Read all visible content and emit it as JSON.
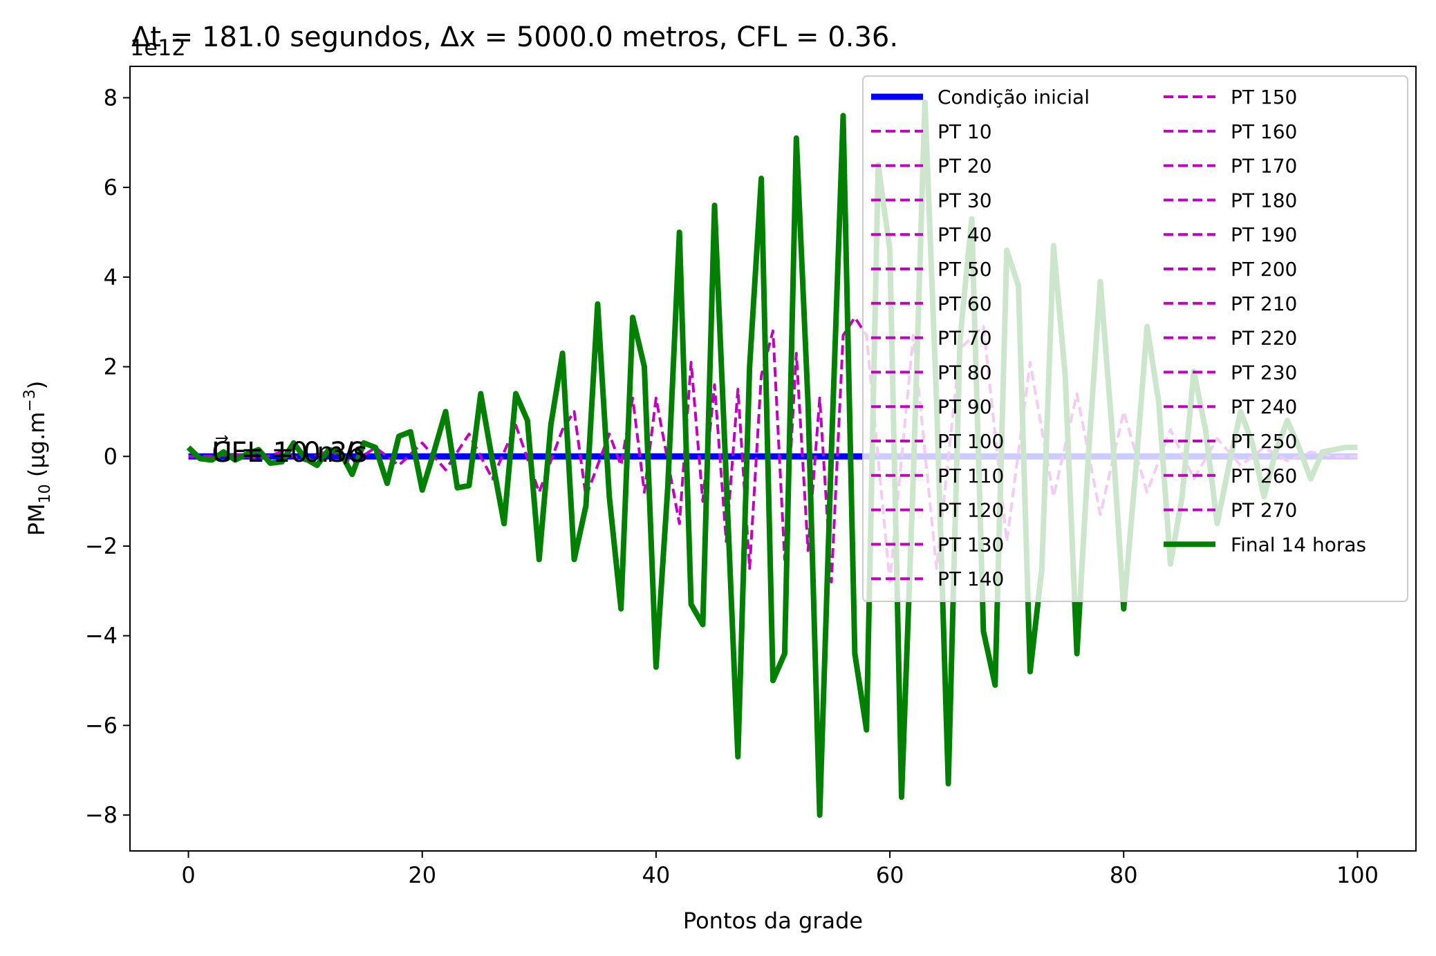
{
  "chart_data": {
    "type": "line",
    "title": "Δt = 181.0 segundos, Δx = 5000.0 metros, CFL = 0.36.",
    "xlabel": "Pontos da grade",
    "ylabel_main": "PM",
    "ylabel_sub": "10",
    "ylabel_mid": " (μg.m",
    "ylabel_sup": "−3",
    "ylabel_end": ")",
    "offset_text": "1e12",
    "xlim": [
      -5,
      105
    ],
    "ylim": [
      -8.8,
      8.7
    ],
    "xticks": [
      0,
      20,
      40,
      60,
      80,
      100
    ],
    "yticks": [
      -8,
      -6,
      -4,
      -2,
      0,
      2,
      4,
      6,
      8
    ],
    "ytick_labels": [
      "−8",
      "−6",
      "−4",
      "−2",
      "0",
      "2",
      "4",
      "6",
      "8"
    ],
    "grid": false,
    "annotations": [
      {
        "text": "CFL = 0.36",
        "x": 2,
        "y": 0.1
      },
      {
        "text": "U⃗ = 10 m/s",
        "x": 2,
        "y": 0.1
      }
    ],
    "legend": {
      "placement": "top-right",
      "column1": [
        "Condição inicial",
        "PT 10",
        "PT 20",
        "PT 30",
        "PT 40",
        "PT 50",
        "PT 60",
        "PT 70",
        "PT 80",
        "PT 90",
        "PT 100",
        "PT 110",
        "PT 120",
        "PT 130",
        "PT 140"
      ],
      "column2": [
        "PT 150",
        "PT 160",
        "PT 170",
        "PT 180",
        "PT 190",
        "PT 200",
        "PT 210",
        "PT 220",
        "PT 230",
        "PT 240",
        "PT 250",
        "PT 260",
        "PT 270",
        "Final 14 horas"
      ]
    },
    "colors": {
      "initial": "#0000ff",
      "intermediate": "#bf00bf",
      "final": "#008000"
    },
    "series": [
      {
        "name": "Condição inicial",
        "style": "solid-thick",
        "x": [
          0,
          100
        ],
        "y": [
          0,
          0
        ]
      },
      {
        "name": "PT 270",
        "style": "dashed",
        "x": [
          0,
          2,
          4,
          6,
          8,
          10,
          12,
          14,
          16,
          18,
          20,
          22,
          24,
          26,
          28,
          30,
          32,
          33,
          34,
          36,
          37,
          38,
          39,
          40,
          42,
          43,
          44,
          45,
          46,
          47,
          48,
          49,
          50,
          51,
          52,
          53,
          54,
          55,
          56,
          57,
          58,
          60,
          62,
          64,
          66,
          68,
          70,
          72,
          74,
          76,
          78,
          80,
          82,
          84,
          86,
          88,
          90,
          92,
          94,
          96,
          98,
          100
        ],
        "y": [
          0,
          0,
          0.05,
          -0.05,
          0.1,
          -0.1,
          0.15,
          -0.15,
          0.2,
          -0.2,
          0.3,
          -0.3,
          0.5,
          -0.5,
          0.7,
          -0.8,
          0.6,
          1.0,
          -0.9,
          0.5,
          -0.2,
          1.3,
          -0.8,
          1.3,
          -1.5,
          2.1,
          -1.0,
          1.6,
          -1.9,
          1.5,
          -2.5,
          1.8,
          2.8,
          -2.3,
          2.3,
          -2.1,
          1.3,
          -2.8,
          2.7,
          3.1,
          2.7,
          -2.8,
          2.7,
          -2.5,
          2.4,
          2.9,
          -1.9,
          2.1,
          -0.9,
          1.4,
          -1.3,
          1.0,
          -0.8,
          0.6,
          -0.5,
          0.4,
          -0.2,
          0.2,
          -0.1,
          0.1,
          0,
          0
        ]
      },
      {
        "name": "Final 14 horas",
        "style": "solid-thick",
        "x": [
          0,
          1,
          2,
          3,
          4,
          5,
          6,
          7,
          8,
          9,
          10,
          11,
          12,
          13,
          14,
          15,
          16,
          17,
          18,
          19,
          20,
          21,
          22,
          23,
          24,
          25,
          26,
          27,
          28,
          29,
          30,
          31,
          32,
          33,
          34,
          35,
          36,
          37,
          38,
          39,
          40,
          41,
          42,
          43,
          44,
          45,
          46,
          47,
          48,
          49,
          50,
          51,
          52,
          53,
          54,
          55,
          56,
          57,
          58,
          59,
          60,
          61,
          62,
          63,
          64,
          65,
          66,
          67,
          68,
          69,
          70,
          71,
          72,
          73,
          74,
          75,
          76,
          77,
          78,
          79,
          80,
          81,
          82,
          83,
          84,
          85,
          86,
          87,
          88,
          89,
          90,
          91,
          92,
          93,
          94,
          95,
          96,
          97,
          98,
          99,
          100
        ],
        "y": [
          0.2,
          -0.05,
          -0.08,
          0.1,
          -0.08,
          0.05,
          0.15,
          -0.15,
          -0.12,
          0.3,
          -0.05,
          -0.2,
          0.15,
          0.1,
          -0.4,
          0.3,
          0.2,
          -0.6,
          0.45,
          0.55,
          -0.75,
          0.1,
          1.0,
          -0.7,
          -0.65,
          1.4,
          -0.1,
          -1.5,
          1.4,
          0.8,
          -2.3,
          0.7,
          2.3,
          -2.3,
          -1.1,
          3.4,
          -0.9,
          -3.4,
          3.1,
          2.0,
          -4.7,
          -0.7,
          5.0,
          -3.3,
          -3.75,
          5.6,
          -0.5,
          -6.7,
          2.0,
          6.2,
          -5.0,
          -4.4,
          7.1,
          1.2,
          -8.0,
          0.1,
          7.6,
          -4.4,
          -6.1,
          6.5,
          4.6,
          -7.6,
          -0.5,
          7.9,
          1.2,
          -7.3,
          2.6,
          5.3,
          -3.9,
          -5.1,
          4.6,
          3.8,
          -4.8,
          -2.5,
          4.7,
          1.8,
          -4.4,
          0.1,
          3.9,
          0.6,
          -3.4,
          -0.4,
          2.9,
          1.2,
          -2.4,
          -0.9,
          1.9,
          0.6,
          -1.5,
          -0.2,
          1.0,
          0.3,
          -0.9,
          0.1,
          0.8,
          0.2,
          -0.5,
          0.1,
          0.15,
          0.2,
          0.2
        ]
      }
    ]
  }
}
